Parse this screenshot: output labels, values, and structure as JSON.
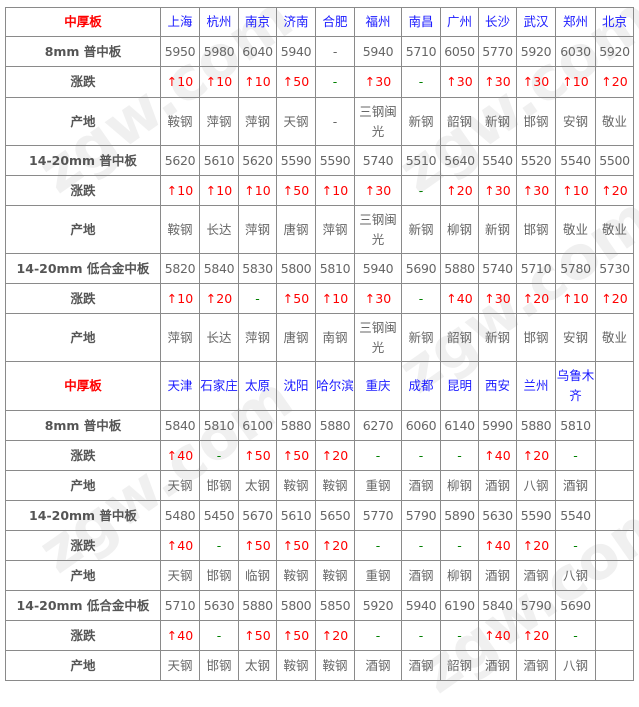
{
  "watermark": "zgw.com 中国互联网百强企业",
  "colors": {
    "section_title": "#ff0000",
    "city": "#1a1aff",
    "rise": "#ff0000",
    "flat": "#008000",
    "text": "#666666"
  },
  "sections": [
    {
      "title": "中厚板",
      "cities": [
        "上海",
        "杭州",
        "南京",
        "济南",
        "合肥",
        "福州",
        "南昌",
        "广州",
        "长沙",
        "武汉",
        "郑州",
        "北京"
      ],
      "products": [
        {
          "label": "8mm 普中板",
          "prices": [
            "5950",
            "5980",
            "6040",
            "5940",
            "-",
            "5940",
            "5710",
            "6050",
            "5770",
            "5920",
            "6030",
            "5920"
          ],
          "change_label": "涨跌",
          "changes": [
            "↑10",
            "↑10",
            "↑10",
            "↑50",
            "-",
            "↑30",
            "-",
            "↑30",
            "↑30",
            "↑30",
            "↑10",
            "↑20"
          ],
          "origin_label": "产地",
          "origins": [
            "鞍钢",
            "萍钢",
            "萍钢",
            "天钢",
            "-",
            "三钢闽光",
            "新钢",
            "韶钢",
            "新钢",
            "邯钢",
            "安钢",
            "敬业"
          ]
        },
        {
          "label": "14-20mm 普中板",
          "prices": [
            "5620",
            "5610",
            "5620",
            "5590",
            "5590",
            "5740",
            "5510",
            "5640",
            "5540",
            "5520",
            "5540",
            "5500"
          ],
          "change_label": "涨跌",
          "changes": [
            "↑10",
            "↑10",
            "↑10",
            "↑50",
            "↑10",
            "↑30",
            "-",
            "↑20",
            "↑30",
            "↑30",
            "↑10",
            "↑20"
          ],
          "origin_label": "产地",
          "origins": [
            "鞍钢",
            "长达",
            "萍钢",
            "唐钢",
            "萍钢",
            "三钢闽光",
            "新钢",
            "柳钢",
            "新钢",
            "邯钢",
            "敬业",
            "敬业"
          ]
        },
        {
          "label": "14-20mm 低合金中板",
          "prices": [
            "5820",
            "5840",
            "5830",
            "5800",
            "5810",
            "5940",
            "5690",
            "5880",
            "5740",
            "5710",
            "5780",
            "5730"
          ],
          "change_label": "涨跌",
          "changes": [
            "↑10",
            "↑20",
            "-",
            "↑50",
            "↑10",
            "↑30",
            "-",
            "↑40",
            "↑30",
            "↑20",
            "↑10",
            "↑20"
          ],
          "origin_label": "产地",
          "origins": [
            "萍钢",
            "长达",
            "萍钢",
            "唐钢",
            "南钢",
            "三钢闽光",
            "新钢",
            "韶钢",
            "新钢",
            "邯钢",
            "安钢",
            "敬业"
          ]
        }
      ]
    },
    {
      "title": "中厚板",
      "cities": [
        "天津",
        "石家庄",
        "太原",
        "沈阳",
        "哈尔滨",
        "重庆",
        "成都",
        "昆明",
        "西安",
        "兰州",
        "乌鲁木齐",
        ""
      ],
      "products": [
        {
          "label": "8mm 普中板",
          "prices": [
            "5840",
            "5810",
            "6100",
            "5880",
            "5880",
            "6270",
            "6060",
            "6140",
            "5990",
            "5880",
            "5810",
            ""
          ],
          "change_label": "涨跌",
          "changes": [
            "↑40",
            "-",
            "↑50",
            "↑50",
            "↑20",
            "-",
            "-",
            "-",
            "↑40",
            "↑20",
            "-",
            ""
          ],
          "origin_label": "产地",
          "origins": [
            "天钢",
            "邯钢",
            "太钢",
            "鞍钢",
            "鞍钢",
            "重钢",
            "酒钢",
            "柳钢",
            "酒钢",
            "八钢",
            "酒钢",
            ""
          ]
        },
        {
          "label": "14-20mm 普中板",
          "prices": [
            "5480",
            "5450",
            "5670",
            "5610",
            "5650",
            "5770",
            "5790",
            "5890",
            "5630",
            "5590",
            "5540",
            ""
          ],
          "change_label": "涨跌",
          "changes": [
            "↑40",
            "-",
            "↑50",
            "↑50",
            "↑20",
            "-",
            "-",
            "-",
            "↑40",
            "↑20",
            "-",
            ""
          ],
          "origin_label": "产地",
          "origins": [
            "天钢",
            "邯钢",
            "临钢",
            "鞍钢",
            "鞍钢",
            "重钢",
            "酒钢",
            "柳钢",
            "酒钢",
            "酒钢",
            "八钢",
            ""
          ]
        },
        {
          "label": "14-20mm 低合金中板",
          "prices": [
            "5710",
            "5630",
            "5880",
            "5800",
            "5850",
            "5920",
            "5940",
            "6190",
            "5840",
            "5790",
            "5690",
            ""
          ],
          "change_label": "涨跌",
          "changes": [
            "↑40",
            "-",
            "↑50",
            "↑50",
            "↑20",
            "-",
            "-",
            "-",
            "↑40",
            "↑20",
            "-",
            ""
          ],
          "origin_label": "产地",
          "origins": [
            "天钢",
            "邯钢",
            "太钢",
            "鞍钢",
            "鞍钢",
            "酒钢",
            "酒钢",
            "韶钢",
            "酒钢",
            "酒钢",
            "八钢",
            ""
          ]
        }
      ]
    }
  ]
}
